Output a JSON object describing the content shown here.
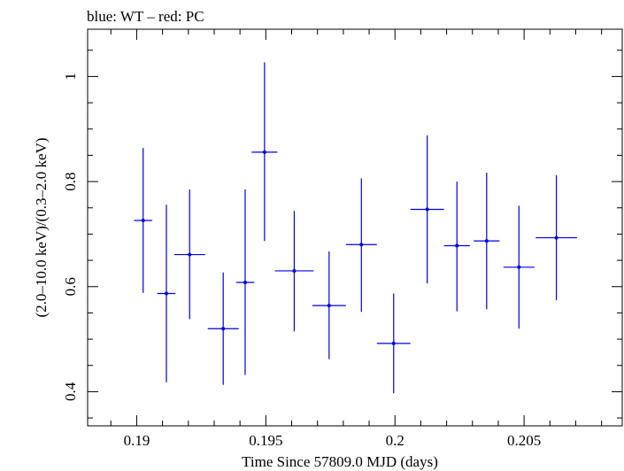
{
  "chart_data": {
    "type": "scatter",
    "title": "blue: WT – red: PC",
    "xlabel": "Time Since 57809.0 MJD (days)",
    "ylabel": "(2.0–10.0 keV)/(0.3–2.0 keV)",
    "xlim": [
      0.1881,
      0.2088
    ],
    "ylim": [
      0.335,
      1.09
    ],
    "x_ticks": [
      {
        "value": 0.19,
        "label": "0.19"
      },
      {
        "value": 0.195,
        "label": "0.195"
      },
      {
        "value": 0.2,
        "label": "0.2"
      },
      {
        "value": 0.205,
        "label": "0.205"
      }
    ],
    "y_ticks": [
      {
        "value": 0.4,
        "label": "0.4"
      },
      {
        "value": 0.6,
        "label": "0.6"
      },
      {
        "value": 0.8,
        "label": "0.8"
      },
      {
        "value": 1.0,
        "label": "1"
      }
    ],
    "grid": false,
    "series": [
      {
        "color": "#0000e0",
        "points": [
          {
            "x": 0.19025,
            "xerr": 0.00035,
            "y": 0.726,
            "ylo": 0.588,
            "yhi": 0.864
          },
          {
            "x": 0.19115,
            "xerr": 0.00035,
            "y": 0.587,
            "ylo": 0.418,
            "yhi": 0.756
          },
          {
            "x": 0.19205,
            "xerr": 0.0006,
            "y": 0.661,
            "ylo": 0.538,
            "yhi": 0.785
          },
          {
            "x": 0.19335,
            "xerr": 0.0006,
            "y": 0.52,
            "ylo": 0.413,
            "yhi": 0.627
          },
          {
            "x": 0.1942,
            "xerr": 0.00035,
            "y": 0.608,
            "ylo": 0.432,
            "yhi": 0.785
          },
          {
            "x": 0.19495,
            "xerr": 0.0005,
            "y": 0.856,
            "ylo": 0.687,
            "yhi": 1.027
          },
          {
            "x": 0.1961,
            "xerr": 0.00075,
            "y": 0.63,
            "ylo": 0.515,
            "yhi": 0.744
          },
          {
            "x": 0.19745,
            "xerr": 0.00065,
            "y": 0.564,
            "ylo": 0.462,
            "yhi": 0.667
          },
          {
            "x": 0.1987,
            "xerr": 0.0006,
            "y": 0.68,
            "ylo": 0.552,
            "yhi": 0.806
          },
          {
            "x": 0.19995,
            "xerr": 0.00065,
            "y": 0.492,
            "ylo": 0.397,
            "yhi": 0.587
          },
          {
            "x": 0.20125,
            "xerr": 0.00065,
            "y": 0.747,
            "ylo": 0.606,
            "yhi": 0.888
          },
          {
            "x": 0.2024,
            "xerr": 0.0005,
            "y": 0.678,
            "ylo": 0.553,
            "yhi": 0.8
          },
          {
            "x": 0.20355,
            "xerr": 0.0005,
            "y": 0.687,
            "ylo": 0.557,
            "yhi": 0.817
          },
          {
            "x": 0.2048,
            "xerr": 0.0006,
            "y": 0.637,
            "ylo": 0.52,
            "yhi": 0.754
          },
          {
            "x": 0.20625,
            "xerr": 0.0008,
            "y": 0.693,
            "ylo": 0.574,
            "yhi": 0.812
          }
        ]
      }
    ]
  }
}
